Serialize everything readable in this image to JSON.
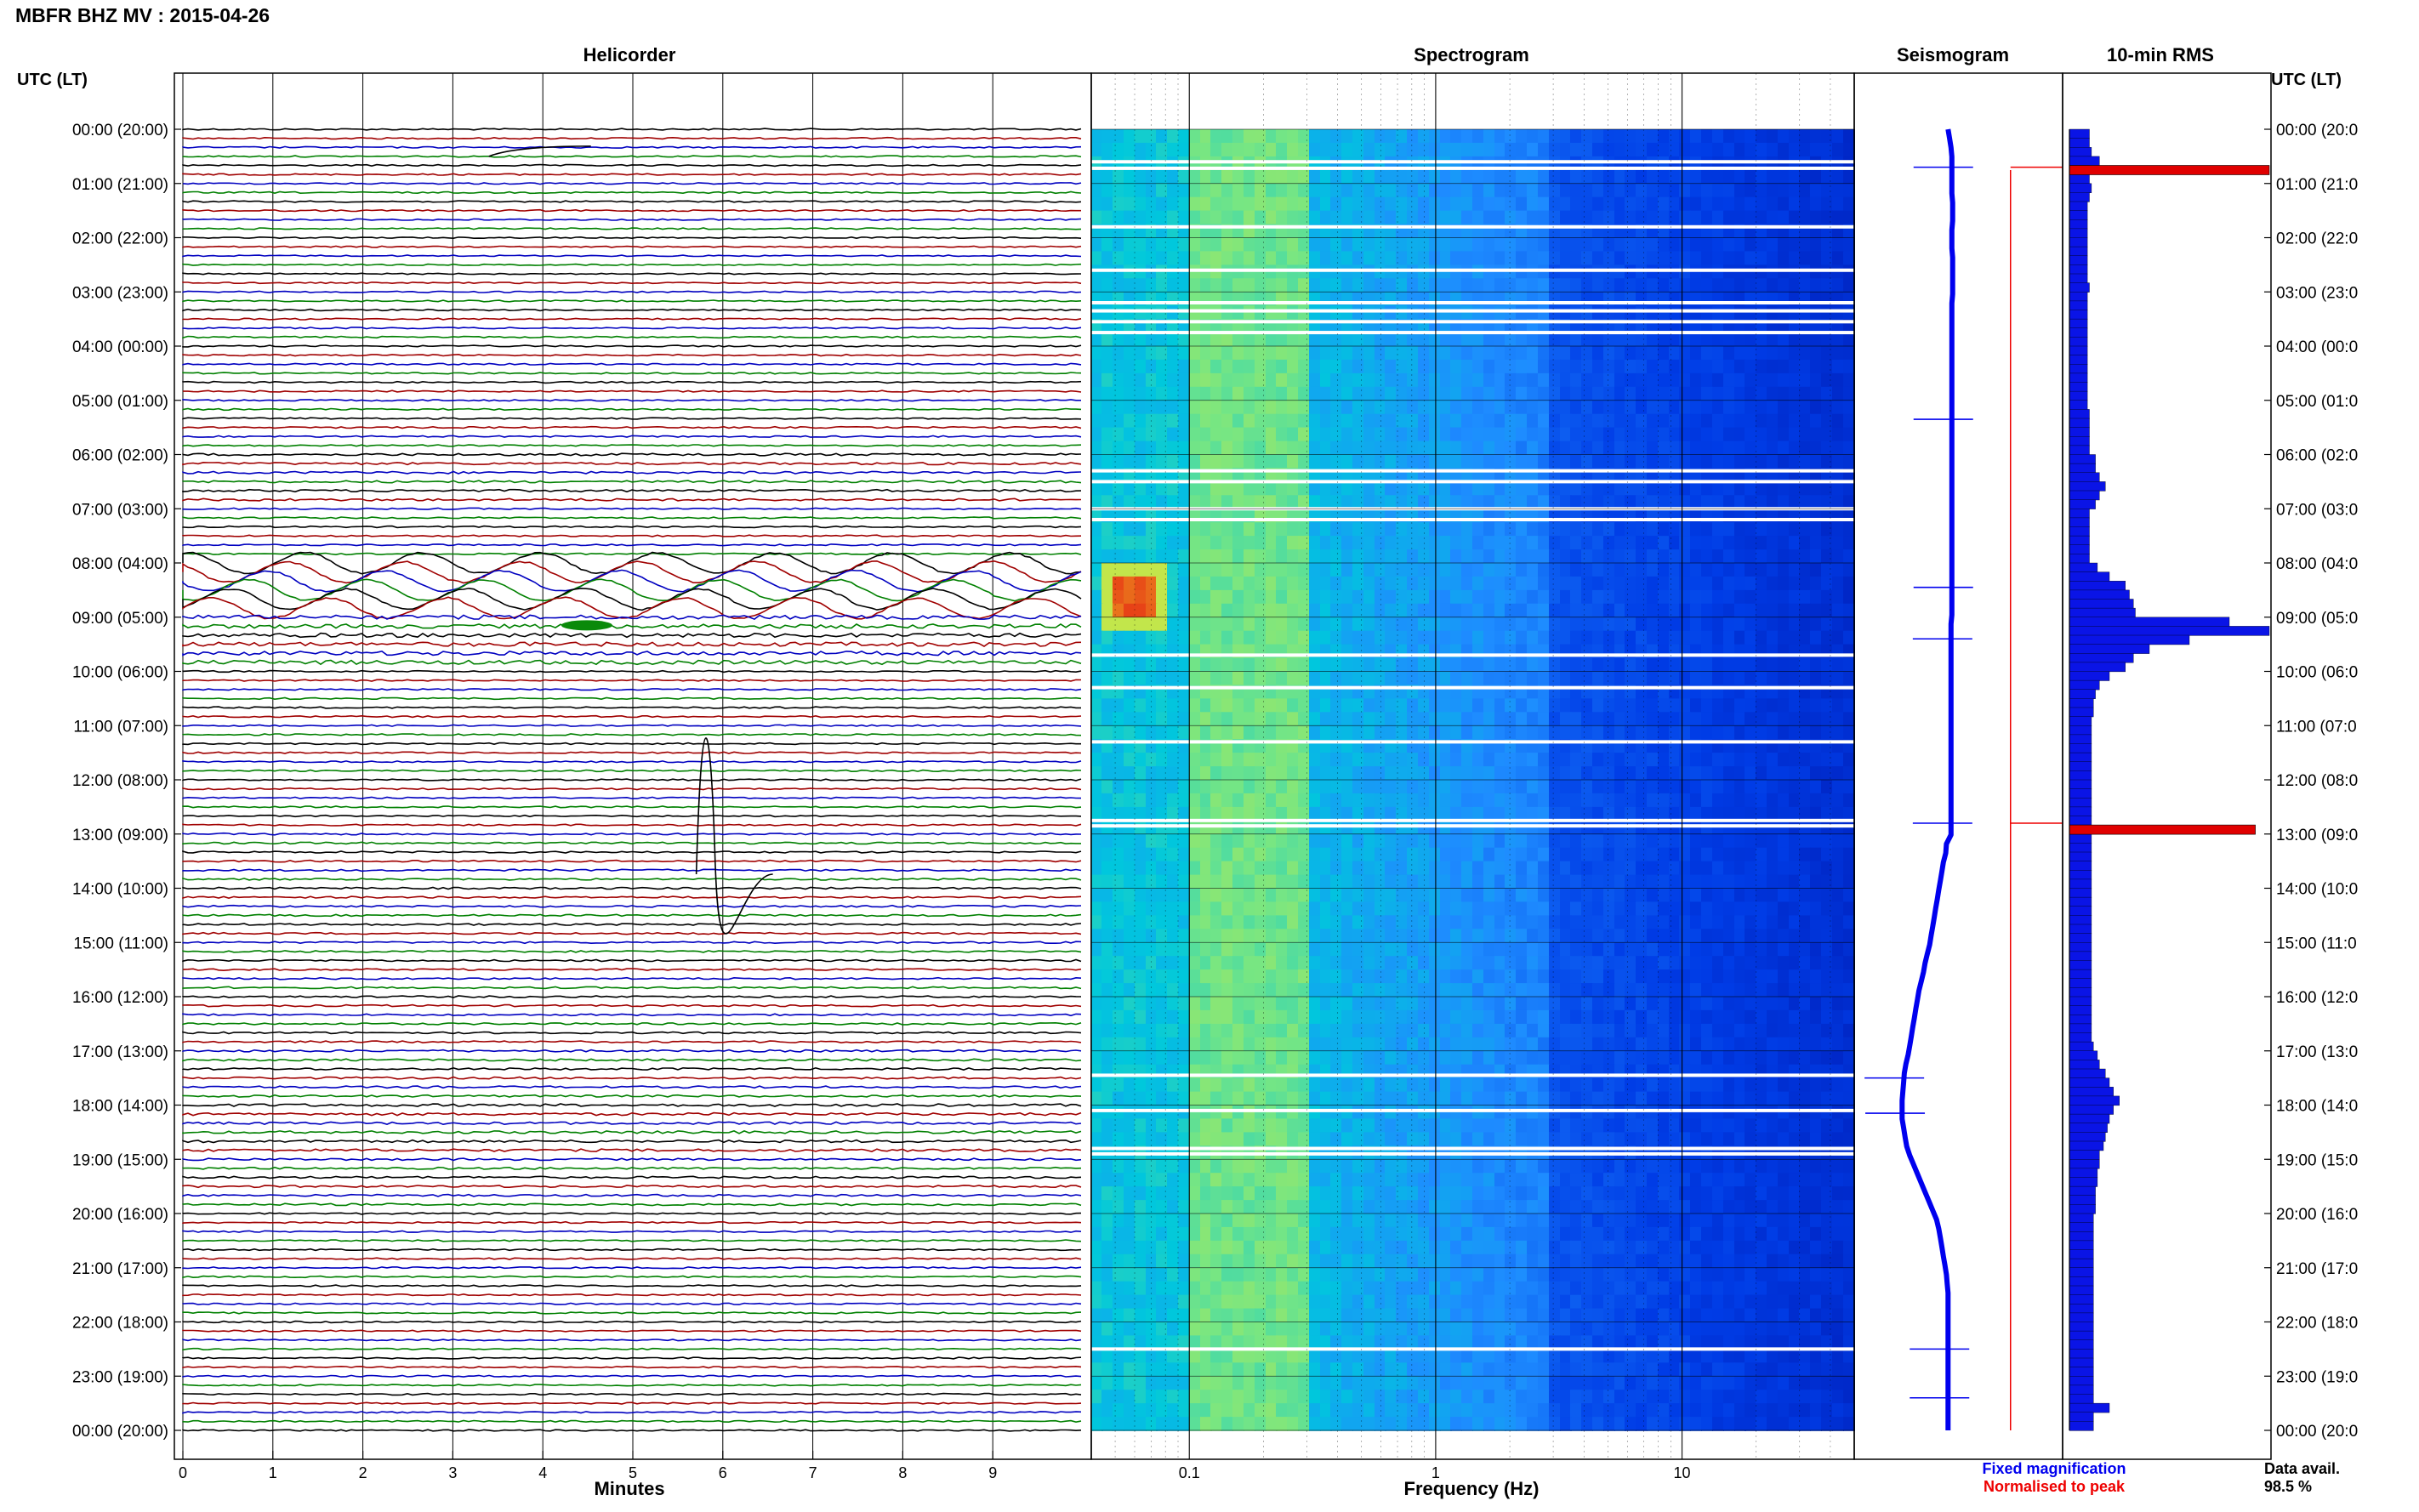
{
  "header": {
    "title": "MBFR BHZ MV : 2015-04-26",
    "time_axis_label": "UTC (LT)"
  },
  "panels": {
    "helicorder": "Helicorder",
    "spectrogram": "Spectrogram",
    "seismogram": "Seismogram",
    "rms": "10-min RMS"
  },
  "time_labels": [
    "00:00 (20:00)",
    "01:00 (21:00)",
    "02:00 (22:00)",
    "03:00 (23:00)",
    "04:00 (00:00)",
    "05:00 (01:00)",
    "06:00 (02:00)",
    "07:00 (03:00)",
    "08:00 (04:00)",
    "09:00 (05:00)",
    "10:00 (06:00)",
    "11:00 (07:00)",
    "12:00 (08:00)",
    "13:00 (09:00)",
    "14:00 (10:00)",
    "15:00 (11:00)",
    "16:00 (12:00)",
    "17:00 (13:00)",
    "18:00 (14:00)",
    "19:00 (15:00)",
    "20:00 (16:00)",
    "21:00 (17:00)",
    "22:00 (18:00)",
    "23:00 (19:00)",
    "00:00 (20:00)"
  ],
  "right_time_labels": [
    "00:00 (20:0",
    "01:00 (21:0",
    "02:00 (22:0",
    "03:00 (23:0",
    "04:00 (00:0",
    "05:00 (01:0",
    "06:00 (02:0",
    "07:00 (03:0",
    "08:00 (04:0",
    "09:00 (05:0",
    "10:00 (06:0",
    "11:00 (07:0",
    "12:00 (08:0",
    "13:00 (09:0",
    "14:00 (10:0",
    "15:00 (11:0",
    "16:00 (12:0",
    "17:00 (13:0",
    "18:00 (14:0",
    "19:00 (15:0",
    "20:00 (16:0",
    "21:00 (17:0",
    "22:00 (18:0",
    "23:00 (19:0",
    "00:00 (20:0"
  ],
  "legend": {
    "fixed": "Fixed magnification",
    "normalised": "Normalised to peak",
    "fixed_color": "#0000ee",
    "normalised_color": "#ee0000"
  },
  "availability": {
    "label": "Data avail.",
    "value": "98.5 %"
  },
  "colors": {
    "trace_cycle": [
      "#000000",
      "#a00000",
      "#0000c0",
      "#008000"
    ],
    "rms_bar": "#0a14e6",
    "rms_peak": "#e00000"
  },
  "chart_data": [
    {
      "type": "line",
      "name": "helicorder",
      "xlabel": "Minutes",
      "xlim": [
        0,
        10
      ],
      "xticks": [
        "0",
        "1",
        "2",
        "3",
        "4",
        "5",
        "6",
        "7",
        "8",
        "9"
      ],
      "rows_per_hour": 6,
      "row_count": 144,
      "noise_amplitude_by_hour": [
        0.3,
        0.3,
        0.25,
        0.3,
        0.3,
        0.3,
        0.45,
        0.3,
        1.8,
        0.8,
        0.3,
        0.3,
        0.3,
        0.35,
        0.35,
        0.35,
        0.35,
        0.4,
        0.5,
        0.4,
        0.3,
        0.3,
        0.3,
        0.3
      ],
      "events": [
        {
          "hour": 0.5,
          "minute": 3.4,
          "label_kind": "step"
        },
        {
          "hour": 8.4,
          "minute": 0.5,
          "label_kind": "long-period"
        },
        {
          "hour": 9.15,
          "minute": 4.3,
          "label_kind": "burst"
        },
        {
          "hour": 12.8,
          "minute": 5.8,
          "label_kind": "spike"
        }
      ]
    },
    {
      "type": "heatmap",
      "name": "spectrogram",
      "xlabel": "Frequency (Hz)",
      "xscale": "log",
      "xlim": [
        0.04,
        50
      ],
      "xticks": [
        "0.1",
        "1",
        "10"
      ],
      "xtick_values": [
        0.1,
        1,
        10
      ],
      "gap_hours": [
        0.6,
        0.72,
        1.8,
        2.6,
        3.2,
        3.35,
        3.55,
        3.75,
        6.3,
        6.5,
        7.0,
        7.2,
        9.7,
        10.3,
        11.3,
        12.75,
        12.85,
        17.45,
        18.1,
        18.8,
        18.9,
        22.5
      ],
      "hot_spot": {
        "hour_start": 8.25,
        "hour_end": 8.85,
        "freq_start": 0.05,
        "freq_end": 0.075
      }
    },
    {
      "type": "line",
      "name": "seismogram",
      "samples_per_hour": 6,
      "relative_offset": [
        0.0,
        0.02,
        0.04,
        0.05,
        0.05,
        0.05,
        0.05,
        0.05,
        0.06,
        0.06,
        0.06,
        0.05,
        0.05,
        0.05,
        0.06,
        0.06,
        0.06,
        0.06,
        0.06,
        0.05,
        0.05,
        0.05,
        0.05,
        0.05,
        0.05,
        0.05,
        0.05,
        0.05,
        0.05,
        0.05,
        0.05,
        0.05,
        0.05,
        0.05,
        0.05,
        0.05,
        0.05,
        0.05,
        0.05,
        0.05,
        0.05,
        0.05,
        0.05,
        0.05,
        0.05,
        0.05,
        0.05,
        0.05,
        0.05,
        0.05,
        0.05,
        0.05,
        0.05,
        0.05,
        0.04,
        0.04,
        0.04,
        0.04,
        0.04,
        0.04,
        0.04,
        0.04,
        0.04,
        0.04,
        0.04,
        0.04,
        0.04,
        0.04,
        0.04,
        0.04,
        0.04,
        0.04,
        0.04,
        0.04,
        0.04,
        0.04,
        0.04,
        0.04,
        -0.02,
        -0.03,
        -0.06,
        -0.08,
        -0.1,
        -0.12,
        -0.14,
        -0.16,
        -0.18,
        -0.2,
        -0.22,
        -0.24,
        -0.27,
        -0.3,
        -0.32,
        -0.35,
        -0.38,
        -0.4,
        -0.42,
        -0.44,
        -0.46,
        -0.48,
        -0.5,
        -0.52,
        -0.55,
        -0.57,
        -0.58,
        -0.59,
        -0.6,
        -0.6,
        -0.6,
        -0.58,
        -0.56,
        -0.54,
        -0.5,
        -0.45,
        -0.4,
        -0.35,
        -0.3,
        -0.25,
        -0.2,
        -0.15,
        -0.12,
        -0.1,
        -0.08,
        -0.06,
        -0.04,
        -0.02,
        -0.01,
        0.0,
        0.0,
        0.0,
        0.0,
        0.0,
        0.0,
        0.0,
        0.0,
        0.0,
        0.0,
        0.0,
        0.0,
        0.0,
        0.0,
        0.0,
        0.0
      ],
      "spikes_hours": [
        0.7,
        5.35,
        8.45,
        9.4,
        12.8,
        17.5,
        18.15,
        22.5,
        23.4
      ],
      "normalised_line_x": 0.75
    },
    {
      "type": "bar",
      "name": "rms_10min",
      "orientation": "horizontal",
      "bins_per_hour": 6,
      "values": [
        0.1,
        0.1,
        0.11,
        0.15,
        0.1,
        0.1,
        0.11,
        0.1,
        0.09,
        0.09,
        0.09,
        0.09,
        0.09,
        0.09,
        0.09,
        0.09,
        0.09,
        0.1,
        0.09,
        0.09,
        0.09,
        0.09,
        0.09,
        0.09,
        0.09,
        0.09,
        0.09,
        0.09,
        0.09,
        0.09,
        0.09,
        0.1,
        0.1,
        0.1,
        0.1,
        0.1,
        0.13,
        0.13,
        0.15,
        0.18,
        0.15,
        0.13,
        0.1,
        0.1,
        0.1,
        0.1,
        0.1,
        0.1,
        0.14,
        0.2,
        0.28,
        0.3,
        0.32,
        0.33,
        0.8,
        1.0,
        0.6,
        0.4,
        0.32,
        0.28,
        0.2,
        0.15,
        0.13,
        0.12,
        0.12,
        0.11,
        0.11,
        0.11,
        0.11,
        0.11,
        0.11,
        0.11,
        0.11,
        0.11,
        0.11,
        0.11,
        0.11,
        0.11,
        0.11,
        0.11,
        0.11,
        0.11,
        0.11,
        0.11,
        0.11,
        0.11,
        0.11,
        0.11,
        0.11,
        0.11,
        0.11,
        0.11,
        0.11,
        0.11,
        0.11,
        0.11,
        0.11,
        0.11,
        0.11,
        0.11,
        0.11,
        0.12,
        0.14,
        0.15,
        0.18,
        0.2,
        0.22,
        0.25,
        0.22,
        0.2,
        0.19,
        0.18,
        0.17,
        0.15,
        0.15,
        0.14,
        0.14,
        0.13,
        0.13,
        0.13,
        0.12,
        0.12,
        0.12,
        0.12,
        0.12,
        0.12,
        0.12,
        0.12,
        0.12,
        0.12,
        0.12,
        0.12,
        0.12,
        0.12,
        0.12,
        0.12,
        0.12,
        0.12,
        0.12,
        0.12,
        0.12,
        0.2,
        0.12,
        0.12
      ],
      "peak_bins": [
        {
          "bin": 4,
          "value": 1.0
        },
        {
          "bin": 77,
          "value": 0.93
        }
      ]
    }
  ]
}
